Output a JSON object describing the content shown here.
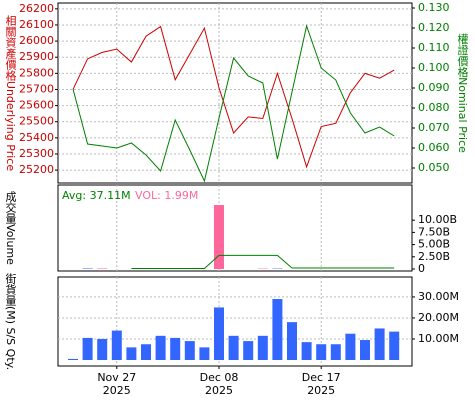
{
  "chart_data": [
    {
      "type": "line",
      "ylabel": "相關資產價格Underlying Price",
      "y2label": "權證價格Nominal Price",
      "ylim": [
        25120,
        26230
      ],
      "yticks": [
        25200,
        25300,
        25400,
        25500,
        25600,
        25700,
        25800,
        25900,
        26000,
        26100,
        26200
      ],
      "y2lim": [
        0.0425,
        0.132
      ],
      "y2ticks": [
        {
          "value": 0.05,
          "label": "0.050"
        },
        {
          "value": 0.06,
          "label": "0.060"
        },
        {
          "value": 0.07,
          "label": "0.070"
        },
        {
          "value": 0.08,
          "label": "0.080"
        },
        {
          "value": 0.09,
          "label": "0.090"
        },
        {
          "value": 0.1,
          "label": "0.100"
        },
        {
          "value": 0.11,
          "label": "0.110"
        },
        {
          "value": 0.12,
          "label": "0.120"
        },
        {
          "value": 0.13,
          "label": "0.130"
        }
      ],
      "grid": true,
      "series": [
        {
          "color": "#cc0000",
          "values": [
            25700,
            25890,
            25930,
            25950,
            25870,
            26030,
            26090,
            25760,
            25920,
            26080,
            25710,
            25430,
            25530,
            25520,
            25800,
            25520,
            25220,
            25470,
            25490,
            25680,
            25800,
            25770,
            25820
          ]
        },
        {
          "color": "#008000",
          "axis": "y2",
          "values": [
            0.0895,
            0.062,
            0.061,
            0.06,
            0.0625,
            0.0565,
            0.0485,
            0.074,
            0.059,
            0.0435,
            0.075,
            0.105,
            0.096,
            0.0925,
            0.0545,
            0.088,
            0.121,
            0.1,
            0.094,
            0.0775,
            0.0675,
            0.0705,
            0.066
          ]
        }
      ]
    },
    {
      "type": "bar",
      "ylabel": "成交量Volume",
      "annotations": [
        {
          "text": "Avg: 37.11M",
          "color": "#008000"
        },
        {
          "text": "VOL: 1.99M",
          "color": "#ff6699"
        }
      ],
      "ylim": [
        0,
        17000000000
      ],
      "y2ticks": [
        0,
        {
          "value": 2500000000,
          "label": "2.50B"
        },
        {
          "value": 5000000000,
          "label": "5.00B"
        },
        {
          "value": 7500000000,
          "label": "7.50B"
        },
        {
          "value": 10000000000,
          "label": "10.00B"
        }
      ],
      "values": [
        0,
        100000000,
        100000000,
        0,
        0,
        0,
        0,
        0,
        0,
        0,
        13100000000,
        0,
        0,
        80000000,
        80000000,
        0,
        0,
        0,
        0,
        0,
        0,
        0,
        0
      ],
      "colors": [
        "#ff6699",
        "#3366ff",
        "#ff6699",
        "#ff6699",
        "#ff6699",
        "#ff6699",
        "#ff6699",
        "#ff6699",
        "#ff6699",
        "#ff6699",
        "#ff6699",
        "#ff6699",
        "#ff6699",
        "#ff6699",
        "#3366ff",
        "#ff6699",
        "#ff6699",
        "#ff6699",
        "#ff6699",
        "#ff6699",
        "#ff6699",
        "#ff6699",
        "#ff6699"
      ],
      "line": {
        "color": "#008000",
        "values": [
          null,
          null,
          null,
          null,
          100000000,
          100000000,
          100000000,
          100000000,
          100000000,
          100000000,
          2800000000,
          2800000000,
          2800000000,
          2800000000,
          2800000000,
          200000000,
          200000000,
          200000000,
          200000000,
          200000000,
          200000000,
          200000000,
          200000000
        ]
      }
    },
    {
      "type": "bar",
      "ylabel": "街貨量(M) S/S Qty.",
      "ylim": [
        0,
        39000000
      ],
      "y2ticks": [
        {
          "value": 10000000,
          "label": "10.00M"
        },
        {
          "value": 20000000,
          "label": "20.00M"
        },
        {
          "value": 30000000,
          "label": "30.00M"
        }
      ],
      "grid": true,
      "color": "#3366ff",
      "values": [
        500000,
        10500000,
        10000000,
        14000000,
        6000000,
        7500000,
        11500000,
        10500000,
        9000000,
        6000000,
        25000000,
        11500000,
        9000000,
        11500000,
        29000000,
        18000000,
        8500000,
        7500000,
        7500000,
        12500000,
        9500000,
        15000000,
        13500000
      ],
      "categories": [
        null,
        null,
        null,
        "Nov 27",
        null,
        null,
        null,
        null,
        null,
        null,
        "Dec 08",
        null,
        null,
        null,
        null,
        null,
        null,
        "Dec 17",
        null,
        null,
        null,
        null,
        null
      ],
      "year": "2025"
    }
  ]
}
